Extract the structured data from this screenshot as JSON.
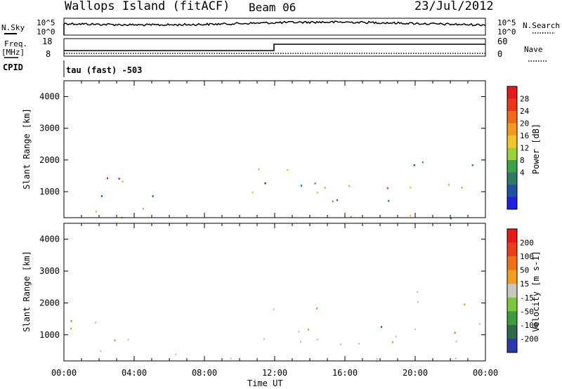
{
  "header": {
    "station": "Wallops Island (fitACF)",
    "beam": "Beam 06",
    "date": "23/Jul/2012"
  },
  "top_panels": {
    "nsky_label": "N.Sky",
    "nsky_ticks": [
      "10^5",
      "10^0"
    ],
    "nsearch_label": "N.Search",
    "nsearch_ticks": [
      "10^5",
      "10^0"
    ],
    "freq_label": "Freq.",
    "freq_unit": "[MHz]",
    "freq_ticks": [
      "18",
      "8"
    ],
    "nave_label": "Nave",
    "nave_ticks": [
      "60",
      "0"
    ],
    "cpid_label": "CPID",
    "cpid_value": "tau (fast) -503"
  },
  "chart_data": [
    {
      "type": "heatmap",
      "name": "power",
      "ylabel": "Slant Range [km]",
      "xlabel": "Time UT",
      "x_ticks": [
        "00:00",
        "04:00",
        "08:00",
        "12:00",
        "16:00",
        "20:00",
        "00:00"
      ],
      "y_ticks": [
        1000,
        2000,
        3000,
        4000
      ],
      "ylim": [
        180,
        4500
      ],
      "xlim_hours": [
        0,
        24
      ],
      "colorbar_label": "Power [dB]",
      "colorbar_ticks": [
        "28",
        "24",
        "20",
        "16",
        "12",
        "8",
        "4"
      ],
      "colorbar_colors": [
        "#1f1fe0",
        "#2050a0",
        "#2f7a62",
        "#3ca24a",
        "#9bd23a",
        "#f2c62a",
        "#f39a1f",
        "#f06a1a",
        "#e8381a",
        "#e41a1a"
      ]
    },
    {
      "type": "heatmap",
      "name": "velocity",
      "ylabel": "Slant Range [km]",
      "xlabel": "Time UT",
      "x_ticks": [
        "00:00",
        "04:00",
        "08:00",
        "12:00",
        "16:00",
        "20:00",
        "00:00"
      ],
      "y_ticks": [
        1000,
        2000,
        3000,
        4000
      ],
      "ylim": [
        180,
        4500
      ],
      "xlim_hours": [
        0,
        24
      ],
      "colorbar_label": "Velocity [m s-1]",
      "colorbar_ticks": [
        "200",
        "100",
        "50",
        "15",
        "-15",
        "-50",
        "-100",
        "-200"
      ],
      "colorbar_colors": [
        "#2a3aa8",
        "#2e6a4a",
        "#3e9a3a",
        "#78c83a",
        "#c8c8c0",
        "#f0a020",
        "#f07018",
        "#e84018",
        "#e41a1a"
      ]
    }
  ],
  "xlabel": "Time UT"
}
